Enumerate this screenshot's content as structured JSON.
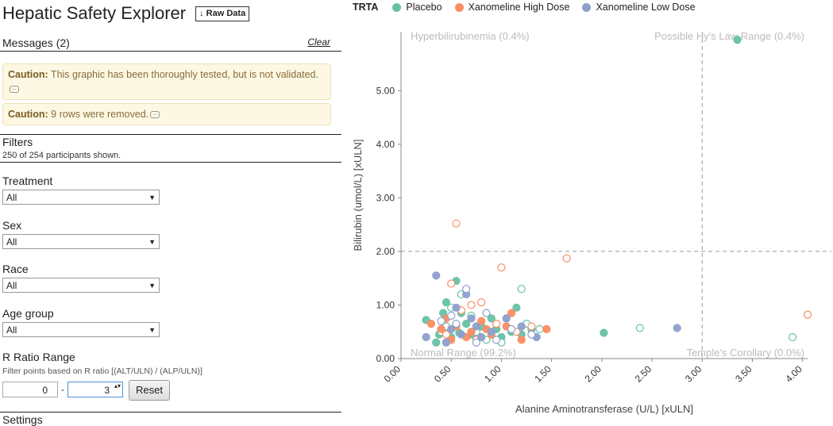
{
  "app": {
    "title": "Hepatic Safety Explorer",
    "raw_data_label": "↓ Raw Data"
  },
  "messages": {
    "heading": "Messages (2)",
    "clear_label": "Clear",
    "items": [
      {
        "prefix": "Caution:",
        "text": " This graphic has been thoroughly tested, but is not validated."
      },
      {
        "prefix": "Caution:",
        "text": " 9 rows were removed."
      }
    ],
    "ellipsis": "..."
  },
  "filters": {
    "heading": "Filters",
    "summary": "250 of 254 participants shown.",
    "items": [
      {
        "label": "Treatment",
        "value": "All"
      },
      {
        "label": "Sex",
        "value": "All"
      },
      {
        "label": "Race",
        "value": "All"
      },
      {
        "label": "Age group",
        "value": "All"
      }
    ],
    "rratio": {
      "label": "R Ratio Range",
      "help": "Filter points based on R ratio [(ALT/ULN) / (ALP/ULN)]",
      "min": "0",
      "max": "3",
      "sep": "-",
      "reset_label": "Reset"
    },
    "next_heading": "Settings"
  },
  "icons": {
    "arrow": "▼",
    "spinner": "▴▾",
    "info": "⊙"
  },
  "colors": {
    "placebo": "#66c2a5",
    "high": "#fc8d62",
    "low": "#8da0cb"
  },
  "chart_data": {
    "type": "scatter",
    "xlabel": "Alanine Aminotransferase (U/L) [xULN]",
    "ylabel": "Bilirubin (umol/L) [xULN]",
    "xlim": [
      0,
      4.05
    ],
    "ylim": [
      0,
      6.1
    ],
    "x_ticks": [
      "0.00",
      "0.50",
      "1.00",
      "1.50",
      "2.00",
      "2.50",
      "3.00",
      "3.50",
      "4.00"
    ],
    "y_ticks": [
      "0.00",
      "1.00",
      "2.00",
      "3.00",
      "4.00",
      "5.00"
    ],
    "reference_lines": {
      "x": 3,
      "y": 2
    },
    "legend": {
      "title": "TRTA",
      "position": "top"
    },
    "quadrants": [
      {
        "label": "Hyperbilirubinemia (0.4%)",
        "pos": "top-left"
      },
      {
        "label": "Possible Hy's Law Range (0.4%)",
        "pos": "top-right"
      },
      {
        "label": "Normal Range (99.2%)",
        "pos": "bottom-left"
      },
      {
        "label": "Temple's Corollary (0.0%)",
        "pos": "bottom-right"
      }
    ],
    "series": [
      {
        "name": "Placebo",
        "color": "#66c2a5",
        "points": [
          [
            3.35,
            5.95,
            1
          ],
          [
            0.55,
            1.45,
            1
          ],
          [
            0.45,
            1.05,
            1
          ],
          [
            0.25,
            0.72,
            1
          ],
          [
            0.38,
            0.45,
            1
          ],
          [
            0.45,
            0.55,
            1
          ],
          [
            0.6,
            0.85,
            1
          ],
          [
            0.7,
            0.45,
            1
          ],
          [
            0.8,
            0.6,
            1
          ],
          [
            0.95,
            0.55,
            1
          ],
          [
            1.15,
            0.95,
            1
          ],
          [
            1.1,
            0.5,
            1
          ],
          [
            1.3,
            0.55,
            1
          ],
          [
            2.02,
            0.48,
            1
          ],
          [
            0.35,
            0.3,
            1
          ],
          [
            0.5,
            0.4,
            1
          ],
          [
            0.65,
            0.65,
            1
          ],
          [
            0.9,
            0.75,
            1
          ],
          [
            1.0,
            0.4,
            1
          ],
          [
            1.2,
            0.45,
            1
          ],
          [
            0.42,
            0.85,
            1
          ],
          [
            0.58,
            0.48,
            1
          ],
          [
            2.38,
            0.57,
            0
          ],
          [
            3.9,
            0.4,
            0
          ],
          [
            1.2,
            1.3,
            0
          ],
          [
            0.6,
            1.2,
            0
          ],
          [
            0.45,
            0.6,
            0
          ],
          [
            0.75,
            0.5,
            0
          ],
          [
            1.0,
            0.3,
            0
          ],
          [
            1.38,
            0.55,
            0
          ],
          [
            0.5,
            0.95,
            0
          ],
          [
            0.85,
            0.35,
            0
          ],
          [
            1.25,
            0.65,
            0
          ],
          [
            0.4,
            0.5,
            0
          ],
          [
            0.7,
            0.8,
            0
          ]
        ]
      },
      {
        "name": "Xanomeline High Dose",
        "color": "#fc8d62",
        "points": [
          [
            0.3,
            0.65,
            1
          ],
          [
            0.45,
            0.75,
            1
          ],
          [
            0.55,
            0.6,
            1
          ],
          [
            0.7,
            0.5,
            1
          ],
          [
            0.85,
            0.55,
            1
          ],
          [
            1.05,
            0.6,
            1
          ],
          [
            1.45,
            0.55,
            1
          ],
          [
            0.5,
            0.35,
            1
          ],
          [
            0.65,
            0.4,
            1
          ],
          [
            0.8,
            0.7,
            1
          ],
          [
            1.2,
            0.35,
            1
          ],
          [
            0.9,
            0.45,
            1
          ],
          [
            0.4,
            0.55,
            1
          ],
          [
            1.1,
            0.85,
            1
          ],
          [
            0.55,
            2.52,
            0
          ],
          [
            1.0,
            1.7,
            0
          ],
          [
            1.65,
            1.87,
            0
          ],
          [
            0.5,
            1.4,
            0
          ],
          [
            0.7,
            1.0,
            0
          ],
          [
            0.8,
            1.05,
            0
          ],
          [
            1.3,
            0.6,
            0
          ],
          [
            4.05,
            0.82,
            0
          ],
          [
            0.6,
            0.9,
            0
          ],
          [
            0.95,
            0.65,
            0
          ],
          [
            0.45,
            0.45,
            0
          ],
          [
            1.15,
            0.5,
            0
          ],
          [
            0.75,
            0.35,
            0
          ]
        ]
      },
      {
        "name": "Xanomeline Low Dose",
        "color": "#8da0cb",
        "points": [
          [
            0.35,
            1.55,
            1
          ],
          [
            0.25,
            0.4,
            1
          ],
          [
            0.5,
            0.55,
            1
          ],
          [
            0.6,
            0.45,
            1
          ],
          [
            0.75,
            0.6,
            1
          ],
          [
            0.9,
            0.5,
            1
          ],
          [
            1.05,
            0.75,
            1
          ],
          [
            1.35,
            0.4,
            1
          ],
          [
            2.75,
            0.57,
            1
          ],
          [
            0.55,
            0.95,
            1
          ],
          [
            0.65,
            1.2,
            1
          ],
          [
            0.45,
            0.3,
            1
          ],
          [
            0.8,
            0.4,
            1
          ],
          [
            1.2,
            0.6,
            1
          ],
          [
            0.7,
            0.75,
            1
          ],
          [
            0.65,
            1.3,
            0
          ],
          [
            0.4,
            0.7,
            0
          ],
          [
            0.85,
            0.85,
            0
          ],
          [
            1.1,
            0.55,
            0
          ],
          [
            0.55,
            0.65,
            0
          ],
          [
            0.95,
            0.35,
            0
          ],
          [
            1.3,
            0.45,
            0
          ],
          [
            0.75,
            0.3,
            0
          ],
          [
            0.5,
            0.8,
            0
          ]
        ]
      }
    ]
  }
}
